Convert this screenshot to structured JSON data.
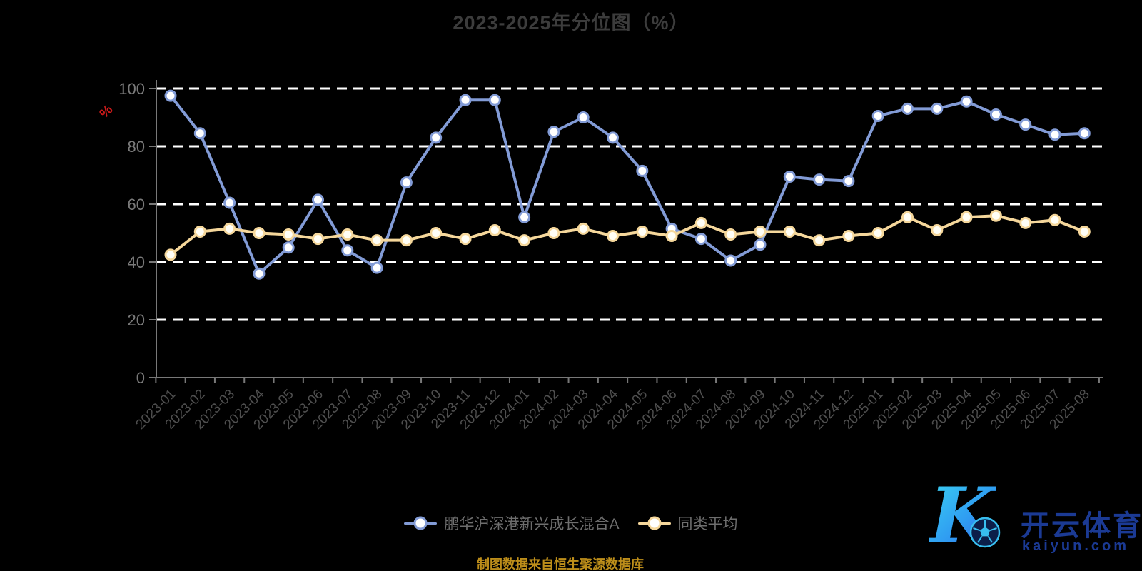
{
  "title": "2023-2025年分位图（%）",
  "footer": {
    "text": "制图数据来自恒生聚源数据库",
    "color": "#BD8E1A"
  },
  "logo": {
    "k_letter": "K",
    "brand_cn": "开云体育",
    "domain": "kaiyun.com",
    "accent_cyan": "#3BD6F2",
    "accent_blue": "#3556E8",
    "text_color": "#1B3A94"
  },
  "chart_data": {
    "type": "line",
    "title": "2023-2025年分位图（%）",
    "xlabel": "",
    "ylabel": "%",
    "ylabel_color": "#CC1A1A",
    "ylim": [
      0,
      100
    ],
    "y_ticks": [
      0,
      20,
      40,
      60,
      80,
      100
    ],
    "grid": "horizontal-dashed-white",
    "legend_position": "bottom",
    "categories": [
      "2023-01",
      "2023-02",
      "2023-03",
      "2023-04",
      "2023-05",
      "2023-06",
      "2023-07",
      "2023-08",
      "2023-09",
      "2023-10",
      "2023-11",
      "2023-12",
      "2024-01",
      "2024-02",
      "2024-03",
      "2024-04",
      "2024-05",
      "2024-06",
      "2024-07",
      "2024-08",
      "2024-09",
      "2024-10",
      "2024-11",
      "2024-12",
      "2025-01",
      "2025-02",
      "2025-03",
      "2025-04",
      "2025-05",
      "2025-06",
      "2025-07",
      "2025-08"
    ],
    "series": [
      {
        "name": "鹏华沪深港新兴成长混合A",
        "color": "#829BD6",
        "marker_fill": "#FFFFFF",
        "values": [
          97.5,
          84.5,
          60.5,
          36,
          45,
          61.5,
          44,
          38,
          67.5,
          83,
          96,
          96,
          55.5,
          85,
          90,
          83,
          71.5,
          51.5,
          48,
          40.5,
          46,
          69.5,
          68.5,
          68,
          90.5,
          93,
          93,
          95.5,
          91,
          87.5,
          84,
          84.5
        ]
      },
      {
        "name": "同类平均",
        "color": "#F5D79B",
        "marker_fill": "#FFFEF6",
        "values": [
          42.5,
          50.5,
          51.5,
          50,
          49.5,
          48,
          49.5,
          47.5,
          47.5,
          50,
          48,
          51,
          47.5,
          50,
          51.5,
          49,
          50.5,
          49,
          53.5,
          49.5,
          50.5,
          50.5,
          47.5,
          49,
          50,
          55.5,
          51,
          55.5,
          56,
          53.5,
          54.5,
          50.5
        ]
      }
    ]
  }
}
